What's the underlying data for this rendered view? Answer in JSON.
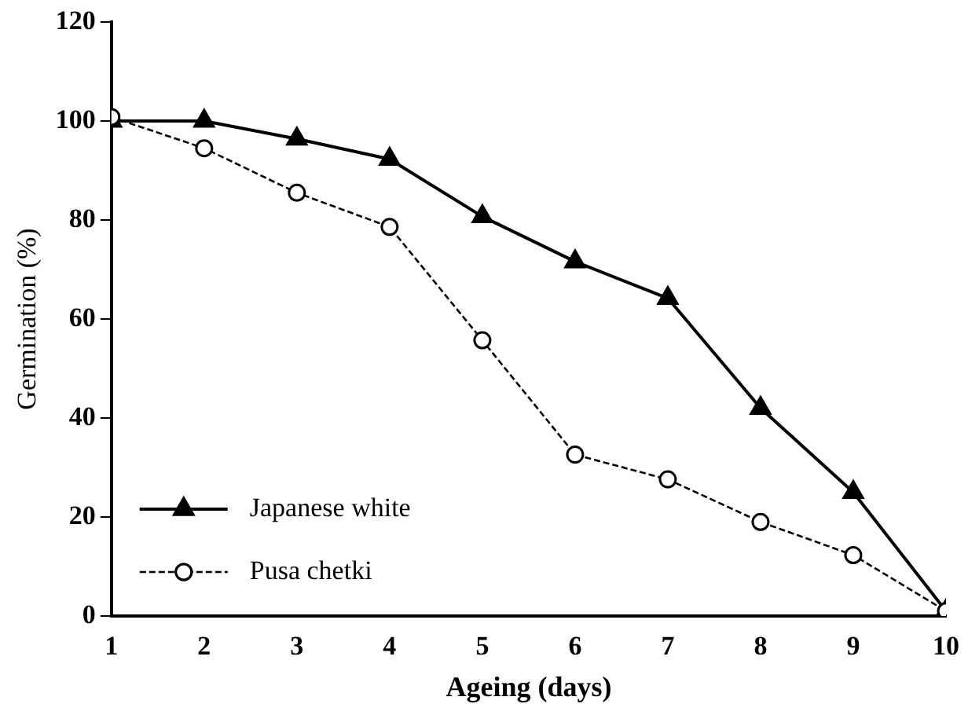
{
  "chart_data": {
    "type": "line",
    "xlabel": "Ageing (days)",
    "ylabel": "Germination (%)",
    "x": [
      1,
      2,
      3,
      4,
      5,
      6,
      7,
      8,
      9,
      10
    ],
    "xlim": [
      1,
      10
    ],
    "xticks": [
      1,
      2,
      3,
      4,
      5,
      6,
      7,
      8,
      9,
      10
    ],
    "ylim": [
      0,
      120
    ],
    "yticks": [
      0,
      20,
      40,
      60,
      80,
      100,
      120
    ],
    "grid": false,
    "legend": "bottom left",
    "series": [
      {
        "name": "Japanese white",
        "color": "#000000",
        "marker": "triangle",
        "line_style": "solid",
        "values": [
          100,
          100,
          96.4,
          92.3,
          80.7,
          71.6,
          64.2,
          42,
          25,
          1
        ]
      },
      {
        "name": "Pusa chetki",
        "color": "#000000",
        "marker": "circle",
        "line_style": "dashed",
        "values": [
          100.8,
          94.5,
          85.5,
          78.6,
          55.7,
          32.6,
          27.6,
          19,
          12.3,
          1
        ]
      }
    ]
  }
}
